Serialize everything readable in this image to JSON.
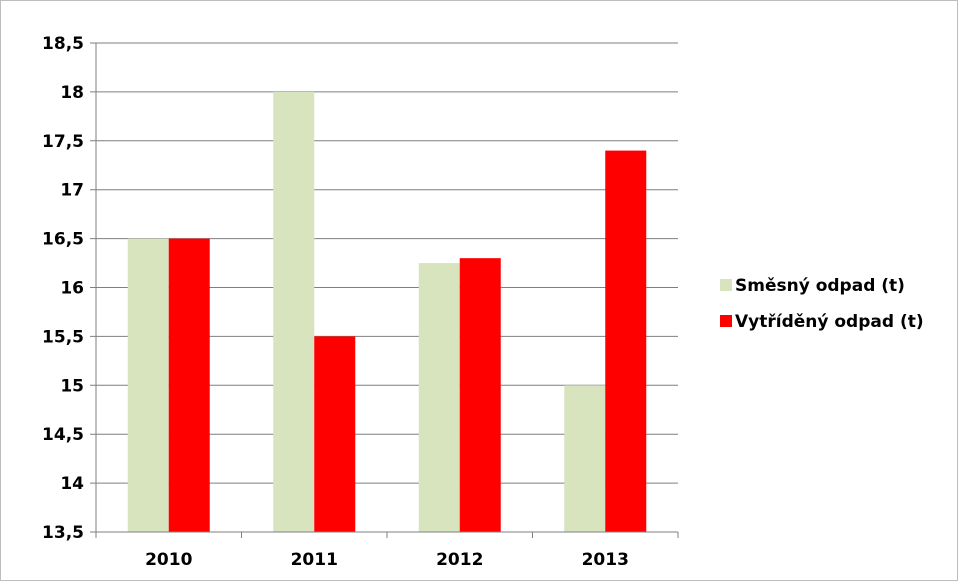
{
  "chart_data": {
    "type": "bar",
    "categories": [
      "2010",
      "2011",
      "2012",
      "2013"
    ],
    "series": [
      {
        "name": "Směsný odpad (t)",
        "values": [
          16.5,
          18.0,
          16.25,
          15.0
        ],
        "color": "#d7e4bd"
      },
      {
        "name": "Vytříděný odpad (t)",
        "values": [
          16.5,
          15.5,
          16.3,
          17.4
        ],
        "color": "#ff0000"
      }
    ],
    "ylim": [
      13.5,
      18.5
    ],
    "yticks": [
      13.5,
      14,
      14.5,
      15,
      15.5,
      16,
      16.5,
      17,
      17.5,
      18,
      18.5
    ],
    "ytick_labels": [
      "13,5",
      "14",
      "14,5",
      "15",
      "15,5",
      "16",
      "16,5",
      "17",
      "17,5",
      "18",
      "18,5"
    ],
    "grid": true,
    "legend_position": "right",
    "title": "",
    "xlabel": "",
    "ylabel": ""
  }
}
